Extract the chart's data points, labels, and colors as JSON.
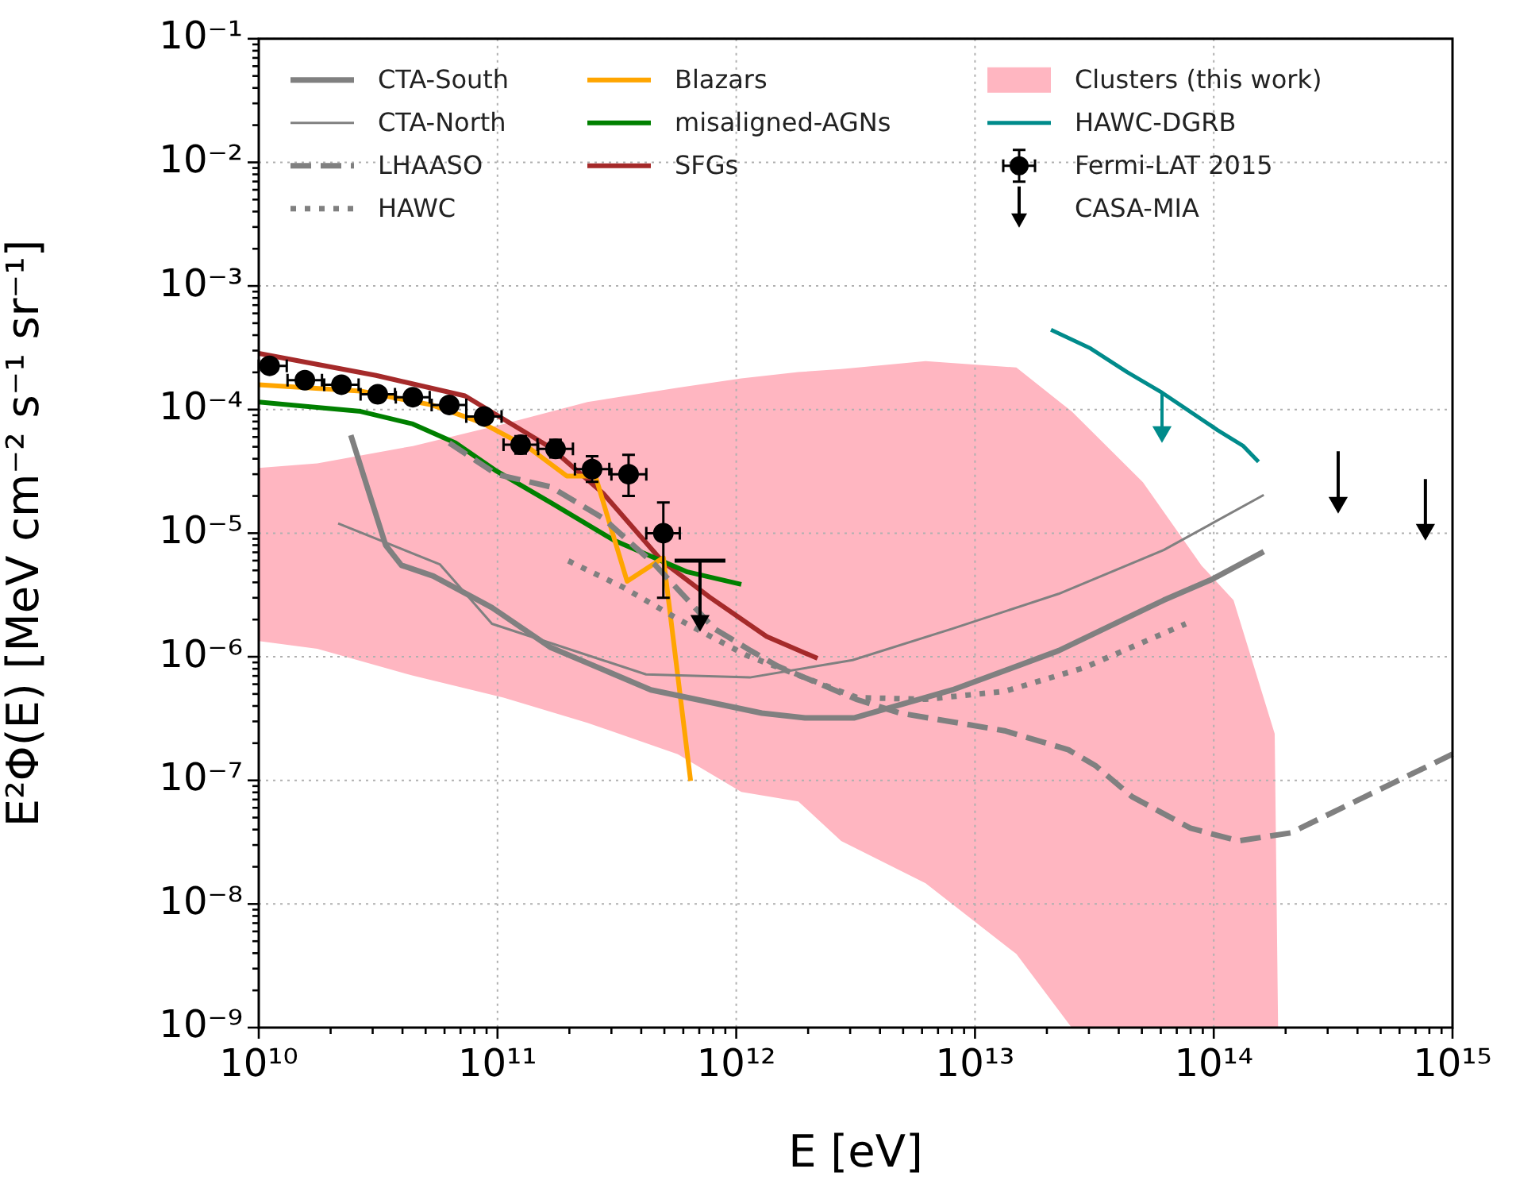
{
  "chart_data": {
    "type": "line",
    "xlabel": "E [eV]",
    "ylabel": "E²Φ(E) [MeV cm⁻² s⁻¹ sr⁻¹]",
    "log": "xy",
    "grid": true,
    "legend": "top",
    "xlim": [
      10000000000.0,
      1000000000000000.0
    ],
    "ylim": [
      1e-09,
      0.1
    ],
    "xticks": [
      {
        "value": 10000000000.0,
        "label": "10¹⁰"
      },
      {
        "value": 20000000000.0,
        "label": null
      },
      {
        "value": 30000000000.0,
        "label": null
      },
      {
        "value": 40000000000.0,
        "label": null
      },
      {
        "value": 50000000000.0,
        "label": null
      },
      {
        "value": 60000000000.0,
        "label": null
      },
      {
        "value": 70000000000.0,
        "label": null
      },
      {
        "value": 80000000000.0,
        "label": null
      },
      {
        "value": 90000000000.0,
        "label": null
      },
      {
        "value": 100000000000.0,
        "label": "10¹¹"
      },
      {
        "value": 200000000000.0,
        "label": null
      },
      {
        "value": 300000000000.0,
        "label": null
      },
      {
        "value": 400000000000.0,
        "label": null
      },
      {
        "value": 500000000000.0,
        "label": null
      },
      {
        "value": 600000000000.0,
        "label": null
      },
      {
        "value": 700000000000.0,
        "label": null
      },
      {
        "value": 800000000000.0,
        "label": null
      },
      {
        "value": 900000000000.0,
        "label": null
      },
      {
        "value": 1000000000000.0,
        "label": "10¹²"
      },
      {
        "value": 2000000000000.0,
        "label": null
      },
      {
        "value": 3000000000000.0,
        "label": null
      },
      {
        "value": 4000000000000.0,
        "label": null
      },
      {
        "value": 5000000000000.0,
        "label": null
      },
      {
        "value": 6000000000000.0,
        "label": null
      },
      {
        "value": 7000000000000.0,
        "label": null
      },
      {
        "value": 8000000000000.0,
        "label": null
      },
      {
        "value": 9000000000000.0,
        "label": null
      },
      {
        "value": 10000000000000.0,
        "label": "10¹³"
      },
      {
        "value": 20000000000000.0,
        "label": null
      },
      {
        "value": 30000000000000.0,
        "label": null
      },
      {
        "value": 40000000000000.0,
        "label": null
      },
      {
        "value": 50000000000000.0,
        "label": null
      },
      {
        "value": 60000000000000.0,
        "label": null
      },
      {
        "value": 70000000000000.0,
        "label": null
      },
      {
        "value": 80000000000000.0,
        "label": null
      },
      {
        "value": 90000000000000.0,
        "label": null
      },
      {
        "value": 100000000000000.0,
        "label": "10¹⁴"
      },
      {
        "value": 200000000000000.0,
        "label": null
      },
      {
        "value": 300000000000000.0,
        "label": null
      },
      {
        "value": 400000000000000.0,
        "label": null
      },
      {
        "value": 500000000000000.0,
        "label": null
      },
      {
        "value": 600000000000000.0,
        "label": null
      },
      {
        "value": 700000000000000.0,
        "label": null
      },
      {
        "value": 800000000000000.0,
        "label": null
      },
      {
        "value": 900000000000000.0,
        "label": null
      },
      {
        "value": 1000000000000000.0,
        "label": "10¹⁵"
      }
    ],
    "yticks": [
      {
        "value": 1e-09,
        "label": "10⁻⁹"
      },
      {
        "value": 2e-09,
        "label": null
      },
      {
        "value": 3e-09,
        "label": null
      },
      {
        "value": 4e-09,
        "label": null
      },
      {
        "value": 5e-09,
        "label": null
      },
      {
        "value": 6e-09,
        "label": null
      },
      {
        "value": 7e-09,
        "label": null
      },
      {
        "value": 8e-09,
        "label": null
      },
      {
        "value": 9e-09,
        "label": null
      },
      {
        "value": 1e-08,
        "label": "10⁻⁸"
      },
      {
        "value": 2e-08,
        "label": null
      },
      {
        "value": 3e-08,
        "label": null
      },
      {
        "value": 4e-08,
        "label": null
      },
      {
        "value": 5e-08,
        "label": null
      },
      {
        "value": 6e-08,
        "label": null
      },
      {
        "value": 7e-08,
        "label": null
      },
      {
        "value": 8e-08,
        "label": null
      },
      {
        "value": 9e-08,
        "label": null
      },
      {
        "value": 1e-07,
        "label": "10⁻⁷"
      },
      {
        "value": 2e-07,
        "label": null
      },
      {
        "value": 3e-07,
        "label": null
      },
      {
        "value": 4e-07,
        "label": null
      },
      {
        "value": 5e-07,
        "label": null
      },
      {
        "value": 6e-07,
        "label": null
      },
      {
        "value": 7e-07,
        "label": null
      },
      {
        "value": 8e-07,
        "label": null
      },
      {
        "value": 9e-07,
        "label": null
      },
      {
        "value": 1e-06,
        "label": "10⁻⁶"
      },
      {
        "value": 2e-06,
        "label": null
      },
      {
        "value": 3e-06,
        "label": null
      },
      {
        "value": 4e-06,
        "label": null
      },
      {
        "value": 5e-06,
        "label": null
      },
      {
        "value": 6e-06,
        "label": null
      },
      {
        "value": 7e-06,
        "label": null
      },
      {
        "value": 8e-06,
        "label": null
      },
      {
        "value": 9e-06,
        "label": null
      },
      {
        "value": 1e-05,
        "label": "10⁻⁵"
      },
      {
        "value": 2e-05,
        "label": null
      },
      {
        "value": 3e-05,
        "label": null
      },
      {
        "value": 4e-05,
        "label": null
      },
      {
        "value": 5e-05,
        "label": null
      },
      {
        "value": 6e-05,
        "label": null
      },
      {
        "value": 7e-05,
        "label": null
      },
      {
        "value": 8e-05,
        "label": null
      },
      {
        "value": 9e-05,
        "label": null
      },
      {
        "value": 0.0001,
        "label": "10⁻⁴"
      },
      {
        "value": 0.0002,
        "label": null
      },
      {
        "value": 0.0003,
        "label": null
      },
      {
        "value": 0.0004,
        "label": null
      },
      {
        "value": 0.0005,
        "label": null
      },
      {
        "value": 0.0006,
        "label": null
      },
      {
        "value": 0.0007,
        "label": null
      },
      {
        "value": 0.0008,
        "label": null
      },
      {
        "value": 0.0009,
        "label": null
      },
      {
        "value": 0.001,
        "label": "10⁻³"
      },
      {
        "value": 0.002,
        "label": null
      },
      {
        "value": 0.003,
        "label": null
      },
      {
        "value": 0.004,
        "label": null
      },
      {
        "value": 0.005,
        "label": null
      },
      {
        "value": 0.006,
        "label": null
      },
      {
        "value": 0.007,
        "label": null
      },
      {
        "value": 0.008,
        "label": null
      },
      {
        "value": 0.009,
        "label": null
      },
      {
        "value": 0.01,
        "label": "10⁻²"
      },
      {
        "value": 0.02,
        "label": null
      },
      {
        "value": 0.03,
        "label": null
      },
      {
        "value": 0.04,
        "label": null
      },
      {
        "value": 0.05,
        "label": null
      },
      {
        "value": 0.06,
        "label": null
      },
      {
        "value": 0.07,
        "label": null
      },
      {
        "value": 0.08,
        "label": null
      },
      {
        "value": 0.09,
        "label": null
      },
      {
        "value": 0.1,
        "label": "10⁻¹"
      }
    ],
    "series": [
      {
        "name": "CTA-South",
        "color": "#808080",
        "line_style": "solid",
        "x": [
          24300000000.0,
          34000000000.0,
          39600000000.0,
          53800000000.0,
          94800000000.0,
          167000000000.0,
          439000000000.0,
          1280000000000.0,
          1940000000000.0,
          3110000000000.0,
          8050000000000.0,
          22400000000000.0,
          61700000000000.0,
          97500000000000.0,
          162000000000000.0
        ],
        "values": [
          6.2e-05,
          8e-06,
          5.5e-06,
          4.5e-06,
          2.5e-06,
          1.19e-06,
          5.4e-07,
          3.5e-07,
          3.2e-07,
          3.2e-07,
          5.4e-07,
          1.12e-06,
          2.87e-06,
          4.2e-06,
          7.1e-06
        ]
      },
      {
        "name": "CTA-North",
        "color": "#808080",
        "line_style": "solid",
        "x": [
          21500000000.0,
          57300000000.0,
          94800000000.0,
          419000000000.0,
          1140000000000.0,
          3070000000000.0,
          8050000000000.0,
          22400000000000.0,
          61700000000000.0,
          162000000000000.0
        ],
        "values": [
          1.2e-05,
          5.6e-06,
          1.85e-06,
          7.2e-07,
          6.8e-07,
          9.4e-07,
          1.69e-06,
          3.23e-06,
          7.3e-06,
          2.04e-05
        ]
      },
      {
        "name": "LHAASO",
        "color": "#808080",
        "line_style": "dashed",
        "x": [
          62800000000.0,
          99300000000.0,
          167000000000.0,
          277000000000.0,
          459000000000.0,
          809000000000.0,
          1150000000000.0,
          1490000000000.0,
          3210000000000.0,
          4860000000000.0,
          13300000000000.0,
          24600000000000.0,
          31900000000000.0,
          45400000000000.0,
          80000000000000.0,
          127000000000000.0,
          210000000000000.0,
          431000000000000.0,
          1000000000000000.0
        ],
        "values": [
          5.37e-05,
          2.99e-05,
          2.37e-05,
          1.32e-05,
          5.5e-06,
          1.69e-06,
          1.12e-06,
          8.4e-07,
          4.5e-07,
          3.5e-07,
          2.52e-07,
          1.77e-07,
          1.32e-07,
          7.4e-08,
          4.1e-08,
          3.24e-08,
          3.76e-08,
          7.4e-08,
          1.63e-07
        ]
      },
      {
        "name": "HAWC",
        "color": "#808080",
        "line_style": "dotted",
        "x": [
          198000000000.0,
          338000000000.0,
          569000000000.0,
          1100000000000.0,
          3210000000000.0,
          6210000000000.0,
          13300000000000.0,
          28600000000000.0,
          76400000000000.0
        ],
        "values": [
          5.97e-06,
          3.63e-06,
          2.02e-06,
          1.03e-06,
          4.67e-07,
          4.53e-07,
          5.25e-07,
          8.15e-07,
          1.85e-06
        ]
      },
      {
        "name": "Blazars",
        "color": "#ffa500",
        "line_style": "solid",
        "x": [
          10000000000.0,
          26700000000.0,
          53000000000.0,
          85300000000.0,
          135000000000.0,
          195000000000.0,
          257000000000.0,
          349000000000.0,
          495000000000.0,
          644000000000.0
        ],
        "values": [
          0.000159,
          0.000141,
          0.000109,
          7.87e-05,
          4.92e-05,
          2.9e-05,
          2.9e-05,
          4.08e-06,
          6.34e-06,
          9.9e-08
        ]
      },
      {
        "name": "misaligned-AGNs",
        "color": "#008000",
        "line_style": "solid",
        "x": [
          10000000000.0,
          26700000000.0,
          44200000000.0,
          66700000000.0,
          99300000000.0,
          167000000000.0,
          308000000000.0,
          624000000000.0,
          1050000000000.0
        ],
        "values": [
          0.000115,
          9.66e-05,
          7.64e-05,
          5.37e-05,
          3.17e-05,
          1.77e-05,
          8.74e-06,
          4.86e-06,
          3.85e-06
        ]
      },
      {
        "name": "SFGs",
        "color": "#a52a2a",
        "line_style": "solid",
        "x": [
          10000000000.0,
          31000000000.0,
          73100000000.0,
          167000000000.0,
          277000000000.0,
          488000000000.0,
          773000000000.0,
          1340000000000.0,
          2190000000000.0
        ],
        "values": [
          0.000285,
          0.000189,
          0.000129,
          4.92e-05,
          2.1e-05,
          5.97e-06,
          3.04e-06,
          1.46e-06,
          9.7e-07
        ]
      },
      {
        "name": "Clusters (this work)",
        "type": "area",
        "color": "#ffb6c1",
        "x": [
          10000000000.0,
          17600000000.0,
          44200000000.0,
          106000000000.0,
          238000000000.0,
          569000000000.0,
          1050000000000.0,
          1820000000000.0,
          2750000000000.0,
          6210000000000.0,
          14900000000000.0,
          25400000000000.0,
          50500000000000.0,
          88900000000000.0,
          121000000000000.0,
          180000000000000.0,
          186000000000000.0
        ],
        "values": [
          null,
          null,
          null,
          null,
          null,
          null,
          null,
          null,
          null,
          null,
          null,
          null,
          null,
          null,
          null,
          null,
          null
        ],
        "upper": [
          3.37e-05,
          3.67e-05,
          5.07e-05,
          7.64e-05,
          0.000115,
          0.00015,
          0.000179,
          0.000201,
          0.000213,
          0.000247,
          0.000219,
          9.66e-05,
          2.58e-05,
          5.47e-06,
          2.87e-06,
          2.38e-07,
          1e-09
        ],
        "lower": [
          1.34e-06,
          1.16e-06,
          7.03e-07,
          4.67e-07,
          2.92e-07,
          1.63e-07,
          8.05e-08,
          6.76e-08,
          3.24e-08,
          1.47e-08,
          3.94e-09,
          1e-09,
          1e-09,
          1e-09,
          1e-09,
          1e-09,
          1e-09
        ]
      },
      {
        "name": "HAWC-DGRB",
        "color": "#008b8b",
        "line_style": "solid",
        "x": [
          20800000000000.0,
          30500000000000.0,
          43400000000000.0,
          60700000000000.0,
          104000000000000.0,
          133000000000000.0,
          154000000000000.0
        ],
        "values": [
          0.000443,
          0.000312,
          0.000201,
          0.000137,
          6.8e-05,
          5.07e-05,
          3.78e-05
        ]
      },
      {
        "name": "Fermi-LAT 2015",
        "type": "scatter",
        "color": "#000000",
        "marker": "circle",
        "x": [
          11100000000.0,
          15600000000.0,
          22200000000.0,
          31500000000.0,
          44200000000.0,
          62800000000.0,
          87900000000.0,
          125000000000.0,
          175000000000.0,
          249000000000.0,
          354000000000.0,
          495000000000.0
        ],
        "values": [
          0.000226,
          0.000173,
          0.000159,
          0.000133,
          0.000126,
          0.000109,
          8.8e-05,
          5.2e-05,
          4.8e-05,
          3.3e-05,
          3e-05,
          1e-05
        ],
        "errors": [
          null,
          null,
          null,
          null,
          null,
          null,
          null,
          [
            4.4e-05,
            6.1e-05
          ],
          [
            4.1e-05,
            5.7e-05
          ],
          [
            2.6e-05,
            4.2e-05
          ],
          [
            2e-05,
            4.3e-05
          ],
          [
            3e-06,
            1.77e-05
          ]
        ],
        "xerrors": [
          [
            10000000000.0,
            13100000000.0
          ],
          [
            13200000000.0,
            18400000000.0
          ],
          [
            18800000000.0,
            26200000000.0
          ],
          [
            26700000000.0,
            37200000000.0
          ],
          [
            37500000000.0,
            52000000000.0
          ],
          [
            53000000000.0,
            74000000000.0
          ],
          [
            74000000000.0,
            104000000000.0
          ],
          [
            106000000000.0,
            147000000000.0
          ],
          [
            148000000000.0,
            207000000000.0
          ],
          [
            211000000000.0,
            294000000000.0
          ],
          [
            300000000000.0,
            420000000000.0
          ],
          [
            420000000000.0,
            580000000000.0
          ]
        ]
      },
      {
        "type": "scatter",
        "color": "#000000",
        "marker": "triangle",
        "x": [
          705000000000.0
        ],
        "values": [
          1.96e-06
        ],
        "errors": [
          [
            1.96e-06,
            6e-06
          ]
        ]
      },
      {
        "name": "CASA-MIA",
        "type": "scatter",
        "color": "#000000",
        "marker": "triangle",
        "x": [
          332000000000000.0,
          770000000000000.0
        ],
        "values": [
          1.77e-05,
          1.07e-05
        ],
        "errors": [
          [
            1.77e-05,
            4.6e-05
          ],
          [
            1.07e-05,
            2.74e-05
          ]
        ]
      },
      {
        "type": "scatter",
        "color": "#008b8b",
        "marker": "triangle",
        "x": [
          60700000000000.0
        ],
        "values": [
          6.6e-05
        ],
        "errors": [
          [
            6.6e-05,
            0.000137
          ]
        ]
      }
    ]
  }
}
